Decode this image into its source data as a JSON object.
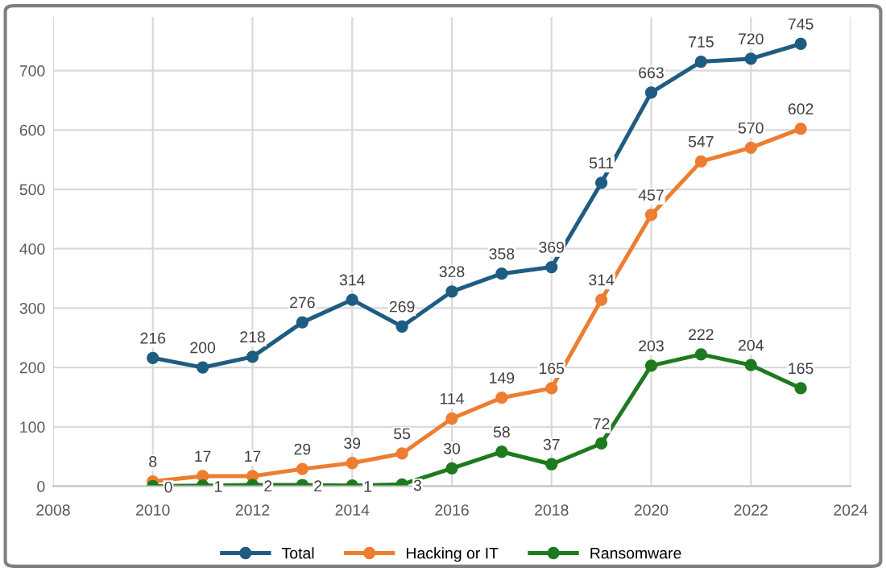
{
  "chart_data": {
    "type": "line",
    "x": [
      2010,
      2011,
      2012,
      2013,
      2014,
      2015,
      2016,
      2017,
      2018,
      2019,
      2020,
      2021,
      2022,
      2023
    ],
    "series": [
      {
        "name": "Total",
        "color": "#1f5c82",
        "values": [
          216,
          200,
          218,
          276,
          314,
          269,
          328,
          358,
          369,
          511,
          663,
          715,
          720,
          745
        ]
      },
      {
        "name": "Hacking or IT",
        "color": "#ed7d31",
        "values": [
          8,
          17,
          17,
          29,
          39,
          55,
          114,
          149,
          165,
          314,
          457,
          547,
          570,
          602
        ]
      },
      {
        "name": "Ransomware",
        "color": "#1e7a1e",
        "values": [
          0,
          1,
          2,
          2,
          1,
          3,
          30,
          58,
          37,
          72,
          203,
          222,
          204,
          165
        ]
      }
    ],
    "xlim": [
      2008,
      2024
    ],
    "xticks": [
      2008,
      2010,
      2012,
      2014,
      2016,
      2018,
      2020,
      2022,
      2024
    ],
    "ylim": [
      0,
      790
    ],
    "yticks": [
      0,
      100,
      200,
      300,
      400,
      500,
      600,
      700
    ],
    "grid": true,
    "legend": "bottom",
    "marker": "circle",
    "line_style": "solid",
    "data_labels": true
  }
}
